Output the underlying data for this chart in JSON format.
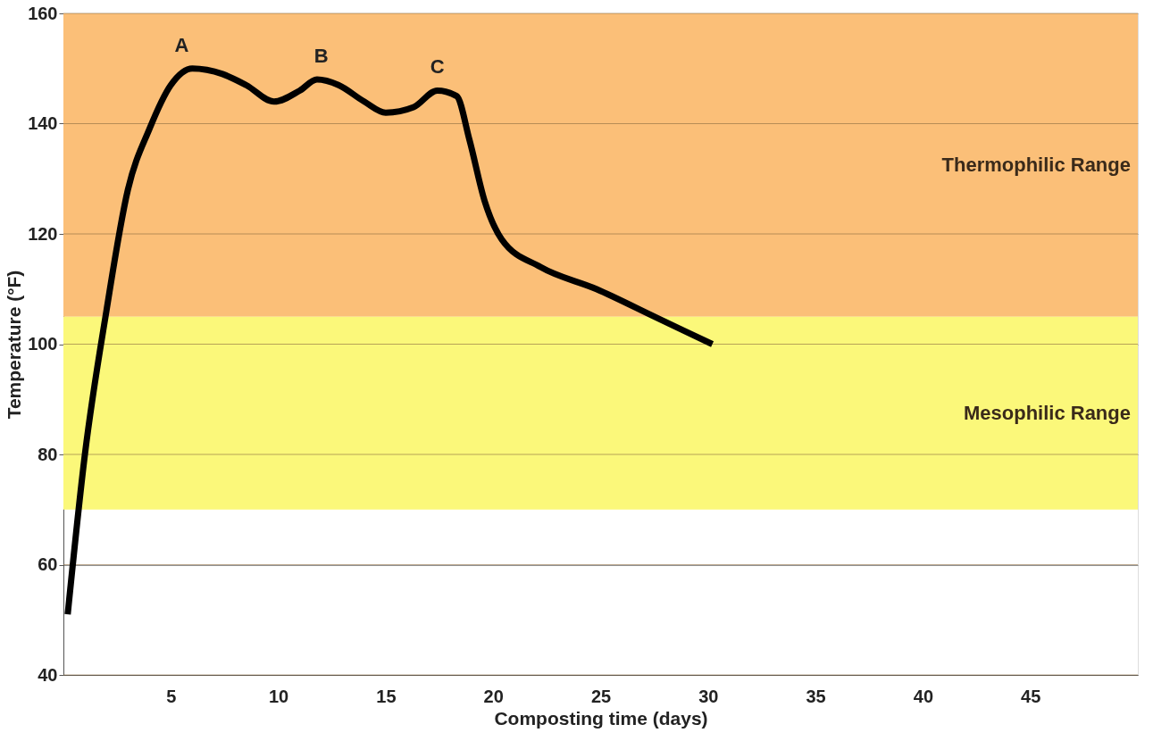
{
  "chart_data": {
    "type": "line",
    "xlabel": "Composting time (days)",
    "ylabel": "Temperature (°F)",
    "xlim": [
      0,
      50
    ],
    "xticks": [
      5,
      10,
      15,
      20,
      25,
      30,
      35,
      40,
      45
    ],
    "ylim": [
      40,
      160
    ],
    "yticks": [
      40,
      60,
      80,
      100,
      120,
      140,
      160
    ],
    "grid": "y",
    "marker": "none",
    "line_style": "solid",
    "series": [
      {
        "color": "#000000",
        "x": [
          0.2,
          1,
          2,
          3,
          4,
          5,
          6,
          7.4,
          8.5,
          9.8,
          11,
          11.8,
          12.8,
          14,
          15,
          16.3,
          17.4,
          18.3,
          18.9,
          19.6,
          20.4,
          22.2,
          24.8,
          27.5,
          30.2
        ],
        "values": [
          51,
          80,
          106,
          128,
          139,
          147,
          150,
          149,
          147,
          144,
          146,
          148,
          147,
          144,
          142,
          143,
          146,
          145,
          137,
          126,
          119,
          114,
          110,
          105,
          100
        ]
      }
    ],
    "bands": [
      {
        "axis": "y",
        "from": 105,
        "to": 160,
        "label": "Thermophilic Range",
        "color": "#fbbf78"
      },
      {
        "axis": "y",
        "from": 70,
        "to": 105,
        "label": "Mesophilic Range",
        "color": "#fbf87a"
      }
    ],
    "annotations": [
      {
        "text": "A",
        "x": 5.5,
        "y": 150
      },
      {
        "text": "B",
        "x": 12,
        "y": 148
      },
      {
        "text": "C",
        "x": 17.4,
        "y": 146
      }
    ]
  }
}
